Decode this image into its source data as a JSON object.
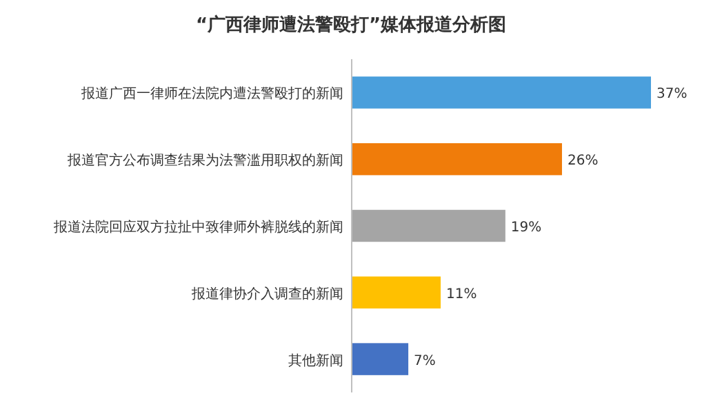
{
  "chart_data": {
    "type": "bar",
    "orientation": "horizontal",
    "title": "“广西律师遭法警殴打”媒体报道分析图",
    "categories": [
      "报道广西一律师在法院内遭法警殴打的新闻",
      "报道官方公布调查结果为法警滥用职权的新闻",
      "报道法院回应双方拉扯中致律师外裤脱线的新闻",
      "报道律协介入调查的新闻",
      "其他新闻"
    ],
    "values": [
      37,
      26,
      19,
      11,
      7
    ],
    "colors": [
      "#4a9fdc",
      "#f07c0a",
      "#a5a5a5",
      "#ffc000",
      "#4472c4"
    ],
    "value_labels": [
      "37%",
      "26%",
      "19%",
      "11%",
      "7%"
    ]
  }
}
